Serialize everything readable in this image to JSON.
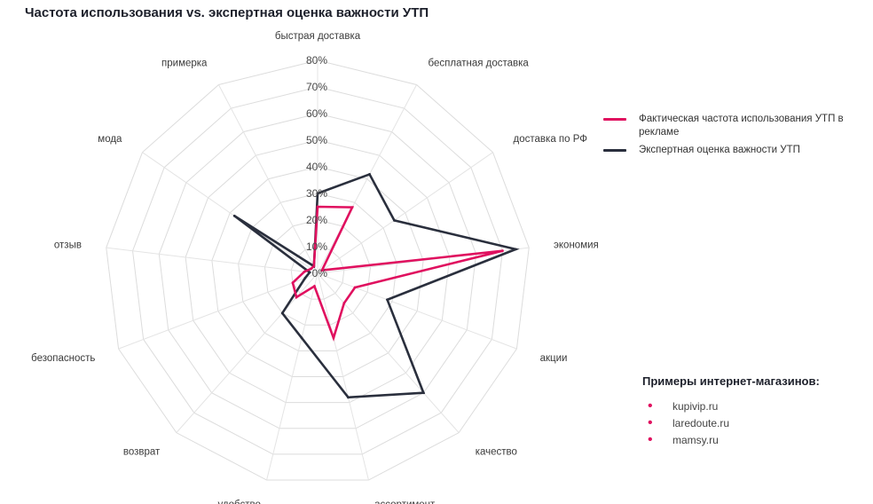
{
  "chart_data": {
    "type": "radar",
    "title": "Частота использования vs. экспертная оценка важности УТП",
    "axes": [
      "быстрая доставка",
      "бесплатная доставка",
      "доставка по РФ",
      "экономия",
      "акции",
      "качество",
      "ассортимент",
      "удобство",
      "возврат",
      "безопасность",
      "отзыв",
      "мода",
      "примерка"
    ],
    "rlim": [
      0,
      80
    ],
    "ticks": [
      "0%",
      "10%",
      "20%",
      "30%",
      "40%",
      "50%",
      "60%",
      "70%",
      "80%"
    ],
    "grid": true,
    "legend_position": "right",
    "series": [
      {
        "name": "Фактическая частота использования УТП в рекламе",
        "color": "#e0105f",
        "values": [
          25,
          28,
          2,
          70,
          15,
          15,
          25,
          5,
          12,
          10,
          5,
          3,
          3
        ]
      },
      {
        "name": "Экспертная оценка важности УТП",
        "color": "#2a2f3d",
        "values": [
          30,
          42,
          35,
          75,
          28,
          60,
          48,
          25,
          20,
          5,
          3,
          38,
          3
        ]
      }
    ]
  },
  "examples": {
    "title": "Примеры интернет-магазинов:",
    "items": [
      "kupivip.ru",
      "laredoute.ru",
      "mamsy.ru"
    ]
  }
}
